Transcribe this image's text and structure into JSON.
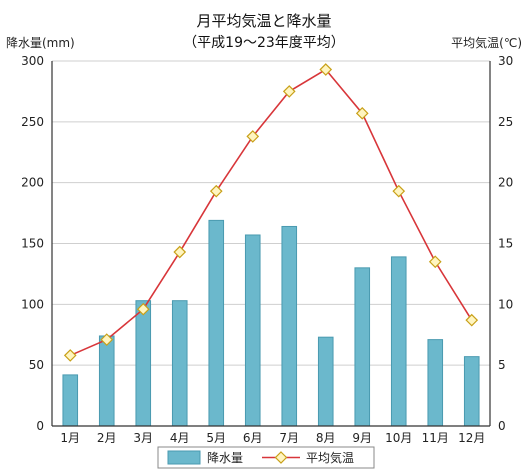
{
  "chart_data": {
    "type": "bar",
    "title": "月平均気温と降水量",
    "subtitle": "（平成19～23年度平均）",
    "ylabel_left": "降水量(mm)",
    "ylabel_right": "平均気温(℃)",
    "categories": [
      "1月",
      "2月",
      "3月",
      "4月",
      "5月",
      "6月",
      "7月",
      "8月",
      "9月",
      "10月",
      "11月",
      "12月"
    ],
    "y_left": {
      "min": 0,
      "max": 300,
      "ticks": [
        "0",
        "50",
        "100",
        "150",
        "200",
        "250",
        "300"
      ]
    },
    "y_right": {
      "min": 0,
      "max": 30,
      "ticks": [
        "0",
        "5",
        "10",
        "15",
        "20",
        "25",
        "30"
      ]
    },
    "grid": true,
    "legend_position": "bottom",
    "series": [
      {
        "name": "降水量",
        "type": "bar",
        "axis": "left",
        "color": "#6bb8cc",
        "values": [
          42,
          74,
          103,
          103,
          169,
          157,
          164,
          73,
          130,
          139,
          71,
          57
        ]
      },
      {
        "name": "平均気温",
        "type": "line",
        "axis": "right",
        "color": "#d8363a",
        "marker_fill": "#fff5c0",
        "marker_stroke": "#c8a018",
        "values": [
          5.8,
          7.1,
          9.6,
          14.3,
          19.3,
          23.8,
          27.5,
          29.3,
          25.7,
          19.3,
          13.5,
          8.7
        ]
      }
    ]
  }
}
